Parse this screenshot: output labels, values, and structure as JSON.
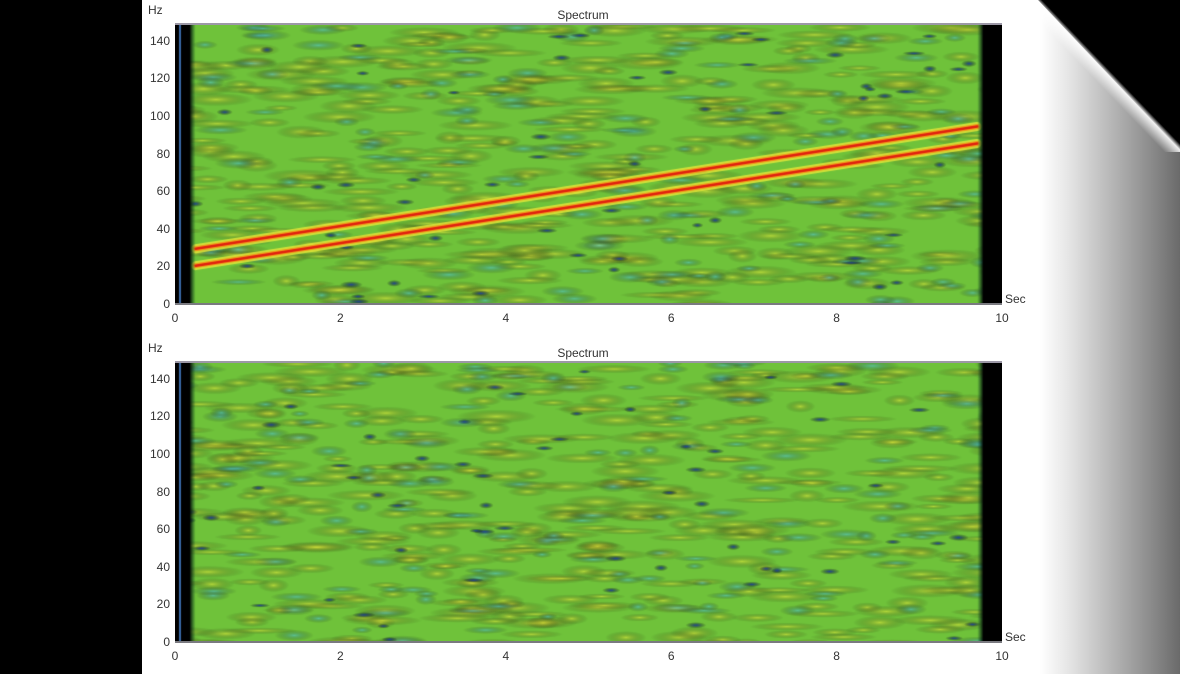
{
  "colors": {
    "background_frame": "#000000",
    "page": "#ffffff",
    "spectrogram_base": "#6fc23a",
    "ridge": "#e02010",
    "ridge_halo": "#f29a1a",
    "blob_yellow": "#e8e83a",
    "blob_cyan": "#4cc0d8",
    "blob_blue": "#1a3aa0",
    "edge_dark": "#000000"
  },
  "chart_data": [
    {
      "type": "heatmap",
      "title": "Spectrum",
      "xlabel": "Sec",
      "ylabel": "Hz",
      "xlim": [
        0,
        10
      ],
      "ylim": [
        0,
        150
      ],
      "xticks": [
        0,
        2,
        4,
        6,
        8,
        10
      ],
      "yticks": [
        0,
        20,
        40,
        60,
        80,
        100,
        120,
        140
      ],
      "grid": false,
      "colormap": "jet",
      "dark_edges_sec": [
        [
          0,
          0.25
        ],
        [
          9.7,
          10
        ]
      ],
      "features": [
        {
          "name": "chirp-upper",
          "t_start": 0.25,
          "f_start": 31,
          "t_end": 9.7,
          "f_end": 96
        },
        {
          "name": "chirp-lower",
          "t_start": 0.25,
          "f_start": 22,
          "t_end": 9.7,
          "f_end": 87
        }
      ],
      "background": "broadband noise (green with yellow/cyan/blue speckles)"
    },
    {
      "type": "heatmap",
      "title": "Spectrum",
      "xlabel": "Sec",
      "ylabel": "Hz",
      "xlim": [
        0,
        10
      ],
      "ylim": [
        0,
        150
      ],
      "xticks": [
        0,
        2,
        4,
        6,
        8,
        10
      ],
      "yticks": [
        0,
        20,
        40,
        60,
        80,
        100,
        120,
        140
      ],
      "grid": false,
      "colormap": "jet",
      "dark_edges_sec": [
        [
          0,
          0.25
        ],
        [
          9.7,
          10
        ]
      ],
      "features": [],
      "background": "broadband noise only (green with yellow/cyan/blue speckles)"
    }
  ],
  "panels": [
    {
      "title": "Spectrum",
      "ylabel": "Hz",
      "xlabel": "Sec",
      "yticks": [
        "0",
        "20",
        "40",
        "60",
        "80",
        "100",
        "120",
        "140"
      ],
      "xticks": [
        "0",
        "2",
        "4",
        "6",
        "8",
        "10"
      ]
    },
    {
      "title": "Spectrum",
      "ylabel": "Hz",
      "xlabel": "Sec",
      "yticks": [
        "0",
        "20",
        "40",
        "60",
        "80",
        "100",
        "120",
        "140"
      ],
      "xticks": [
        "0",
        "2",
        "4",
        "6",
        "8",
        "10"
      ]
    }
  ]
}
